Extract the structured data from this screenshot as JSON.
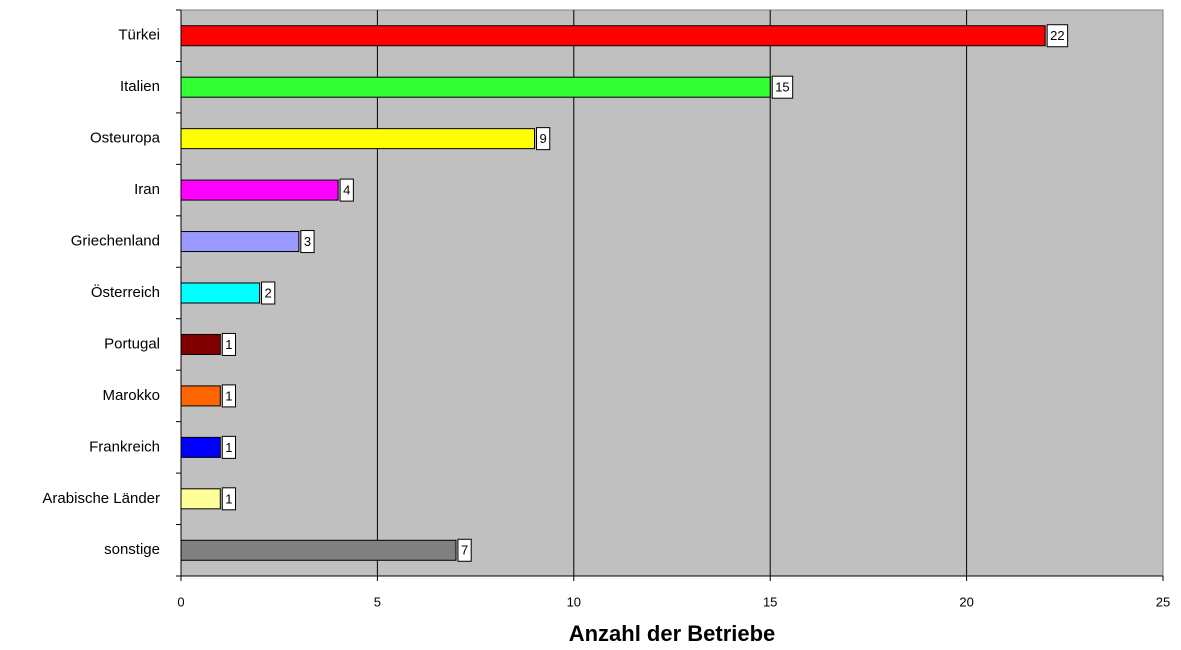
{
  "chart_data": {
    "type": "barh",
    "x_label": "Anzahl der Betriebe",
    "categories": [
      "Türkei",
      "Italien",
      "Osteuropa",
      "Iran",
      "Griechenland",
      "Österreich",
      "Portugal",
      "Marokko",
      "Frankreich",
      "Arabische Länder",
      "sonstige"
    ],
    "values": [
      22,
      15,
      9,
      4,
      3,
      2,
      1,
      1,
      1,
      1,
      7
    ],
    "colors": [
      "#ff0000",
      "#33ff33",
      "#ffff00",
      "#ff00ff",
      "#9999ff",
      "#00ffff",
      "#800000",
      "#ff6600",
      "#0000ff",
      "#ffff99",
      "#808080"
    ],
    "xlim": [
      0,
      25
    ],
    "xticks": [
      0,
      5,
      10,
      15,
      20,
      25
    ],
    "grid": true,
    "background": "#c0c0c0"
  }
}
